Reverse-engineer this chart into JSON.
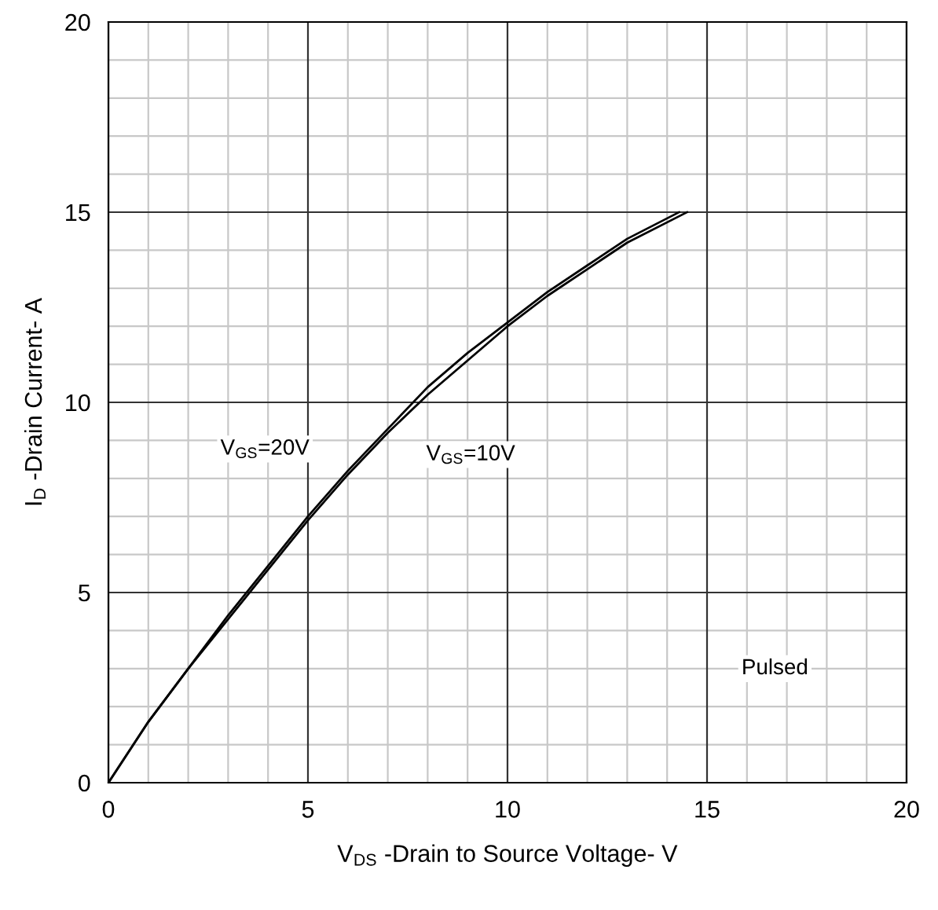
{
  "chart_data": {
    "type": "line",
    "xlabel": "V$_{DS}$ -Drain to Source Voltage- V",
    "ylabel": "I$_{D}$ -Drain Current- A",
    "series": [
      {
        "name": "V$_{GS}$=20V",
        "color": "#000000",
        "x": [
          0,
          1,
          2,
          3,
          4,
          5,
          6,
          7,
          8,
          9,
          10,
          11,
          12,
          13,
          14.3
        ],
        "values": [
          0,
          1.6,
          3.0,
          4.4,
          5.7,
          7.0,
          8.2,
          9.3,
          10.4,
          11.3,
          12.1,
          12.9,
          13.6,
          14.3,
          15
        ]
      },
      {
        "name": "V$_{GS}$=10V",
        "color": "#000000",
        "x": [
          0,
          1,
          2,
          3,
          4,
          5,
          6,
          7,
          8,
          9,
          10,
          11,
          12,
          13,
          14.5
        ],
        "values": [
          0,
          1.6,
          3.0,
          4.3,
          5.6,
          6.9,
          8.1,
          9.2,
          10.2,
          11.1,
          12.0,
          12.8,
          13.5,
          14.2,
          15
        ]
      }
    ],
    "xlim": [
      0,
      20
    ],
    "ylim": [
      0,
      20
    ],
    "xticks": [
      0,
      5,
      10,
      15,
      20
    ],
    "yticks": [
      0,
      5,
      10,
      15,
      20
    ],
    "grid": true,
    "marker": "none",
    "line_style": "solid",
    "legend": false,
    "annotations": [
      "Pulsed"
    ]
  }
}
